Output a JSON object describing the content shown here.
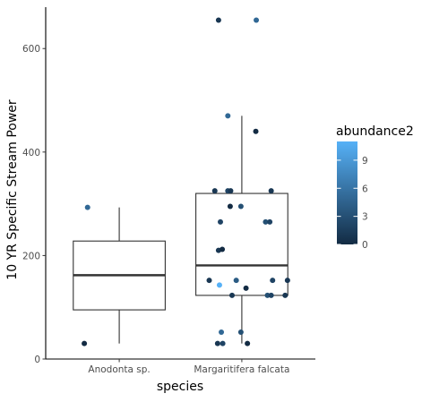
{
  "chart_data": {
    "type": "box",
    "title": "",
    "xlabel": "species",
    "ylabel": "10 YR Specific Stream Power",
    "categories": [
      "Anodonta sp.",
      "Margaritifera falcata"
    ],
    "ylim": [
      0,
      680
    ],
    "yticks": [
      0,
      200,
      400,
      600
    ],
    "grid": false,
    "boxes": [
      {
        "category": "Anodonta sp.",
        "whisker_low": 30,
        "q1": 95,
        "median": 162,
        "q3": 228,
        "whisker_high": 293
      },
      {
        "category": "Margaritifera falcata",
        "whisker_low": 30,
        "q1": 123,
        "median": 181,
        "q3": 320,
        "whisker_high": 470
      }
    ],
    "points": [
      {
        "category": "Anodonta sp.",
        "jitter": 0.42,
        "y": 293,
        "abundance2": 5
      },
      {
        "category": "Anodonta sp.",
        "jitter": 0.35,
        "y": 30,
        "abundance2": 0
      },
      {
        "category": "Margaritifera falcata",
        "jitter": 0.6,
        "y": 655,
        "abundance2": 1
      },
      {
        "category": "Margaritifera falcata",
        "jitter": 1.41,
        "y": 655,
        "abundance2": 5
      },
      {
        "category": "Margaritifera falcata",
        "jitter": 0.8,
        "y": 470,
        "abundance2": 5
      },
      {
        "category": "Margaritifera falcata",
        "jitter": 1.4,
        "y": 440,
        "abundance2": 0
      },
      {
        "category": "Margaritifera falcata",
        "jitter": 0.52,
        "y": 325,
        "abundance2": 1
      },
      {
        "category": "Margaritifera falcata",
        "jitter": 0.8,
        "y": 325,
        "abundance2": 2
      },
      {
        "category": "Margaritifera falcata",
        "jitter": 0.86,
        "y": 325,
        "abundance2": 1
      },
      {
        "category": "Margaritifera falcata",
        "jitter": 1.73,
        "y": 325,
        "abundance2": 1
      },
      {
        "category": "Margaritifera falcata",
        "jitter": 0.85,
        "y": 295,
        "abundance2": 0
      },
      {
        "category": "Margaritifera falcata",
        "jitter": 1.08,
        "y": 295,
        "abundance2": 3
      },
      {
        "category": "Margaritifera falcata",
        "jitter": 0.64,
        "y": 265,
        "abundance2": 2
      },
      {
        "category": "Margaritifera falcata",
        "jitter": 1.61,
        "y": 265,
        "abundance2": 3
      },
      {
        "category": "Margaritifera falcata",
        "jitter": 1.7,
        "y": 265,
        "abundance2": 2
      },
      {
        "category": "Margaritifera falcata",
        "jitter": 0.6,
        "y": 210,
        "abundance2": 1
      },
      {
        "category": "Margaritifera falcata",
        "jitter": 0.68,
        "y": 212,
        "abundance2": 0
      },
      {
        "category": "Margaritifera falcata",
        "jitter": 0.4,
        "y": 152,
        "abundance2": 1
      },
      {
        "category": "Margaritifera falcata",
        "jitter": 0.98,
        "y": 152,
        "abundance2": 4
      },
      {
        "category": "Margaritifera falcata",
        "jitter": 1.76,
        "y": 152,
        "abundance2": 2
      },
      {
        "category": "Margaritifera falcata",
        "jitter": 2.08,
        "y": 152,
        "abundance2": 1
      },
      {
        "category": "Margaritifera falcata",
        "jitter": 0.62,
        "y": 143,
        "abundance2": 11
      },
      {
        "category": "Margaritifera falcata",
        "jitter": 1.19,
        "y": 137,
        "abundance2": 0
      },
      {
        "category": "Margaritifera falcata",
        "jitter": 0.89,
        "y": 123,
        "abundance2": 1
      },
      {
        "category": "Margaritifera falcata",
        "jitter": 1.65,
        "y": 123,
        "abundance2": 3
      },
      {
        "category": "Margaritifera falcata",
        "jitter": 1.73,
        "y": 123,
        "abundance2": 2
      },
      {
        "category": "Margaritifera falcata",
        "jitter": 2.03,
        "y": 123,
        "abundance2": 1
      },
      {
        "category": "Margaritifera falcata",
        "jitter": 0.66,
        "y": 52,
        "abundance2": 5
      },
      {
        "category": "Margaritifera falcata",
        "jitter": 1.08,
        "y": 52,
        "abundance2": 3
      },
      {
        "category": "Margaritifera falcata",
        "jitter": 0.58,
        "y": 30,
        "abundance2": 1
      },
      {
        "category": "Margaritifera falcata",
        "jitter": 0.69,
        "y": 30,
        "abundance2": 2
      },
      {
        "category": "Margaritifera falcata",
        "jitter": 1.22,
        "y": 30,
        "abundance2": 0
      }
    ],
    "legend": {
      "title": "abundance2",
      "placement": "right",
      "range": [
        0,
        11
      ],
      "breaks": [
        0,
        3,
        6,
        9
      ],
      "low_color": "#132B43",
      "high_color": "#56B1F7"
    }
  }
}
